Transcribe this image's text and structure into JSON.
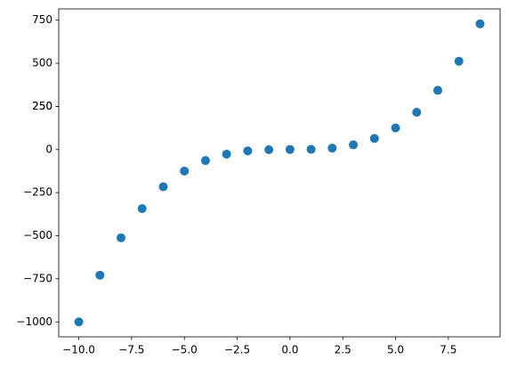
{
  "chart_data": {
    "type": "scatter",
    "x": [
      -10,
      -9,
      -8,
      -7,
      -6,
      -5,
      -4,
      -3,
      -2,
      -1,
      0,
      1,
      2,
      3,
      4,
      5,
      6,
      7,
      8,
      9
    ],
    "values": [
      -1000,
      -729,
      -512,
      -343,
      -216,
      -125,
      -64,
      -27,
      -8,
      -1,
      0,
      1,
      8,
      27,
      64,
      125,
      216,
      343,
      512,
      729
    ],
    "color": "#1f77b4",
    "xlim": [
      -10.95,
      9.95
    ],
    "xticks": [
      {
        "value": -10,
        "label": "−10.0"
      },
      {
        "value": -7.5,
        "label": "−7.5"
      },
      {
        "value": -5,
        "label": "−5.0"
      },
      {
        "value": -2.5,
        "label": "−2.5"
      },
      {
        "value": 0,
        "label": "0.0"
      },
      {
        "value": 2.5,
        "label": "2.5"
      },
      {
        "value": 5,
        "label": "5.0"
      },
      {
        "value": 7.5,
        "label": "7.5"
      }
    ],
    "ylim": [
      -1086.45,
      815.45
    ],
    "yticks": [
      {
        "value": -1000,
        "label": "−1000"
      },
      {
        "value": -750,
        "label": "−750"
      },
      {
        "value": -500,
        "label": "−500"
      },
      {
        "value": -250,
        "label": "−250"
      },
      0,
      250,
      500,
      750,
      250
    ],
    "grid": false
  }
}
